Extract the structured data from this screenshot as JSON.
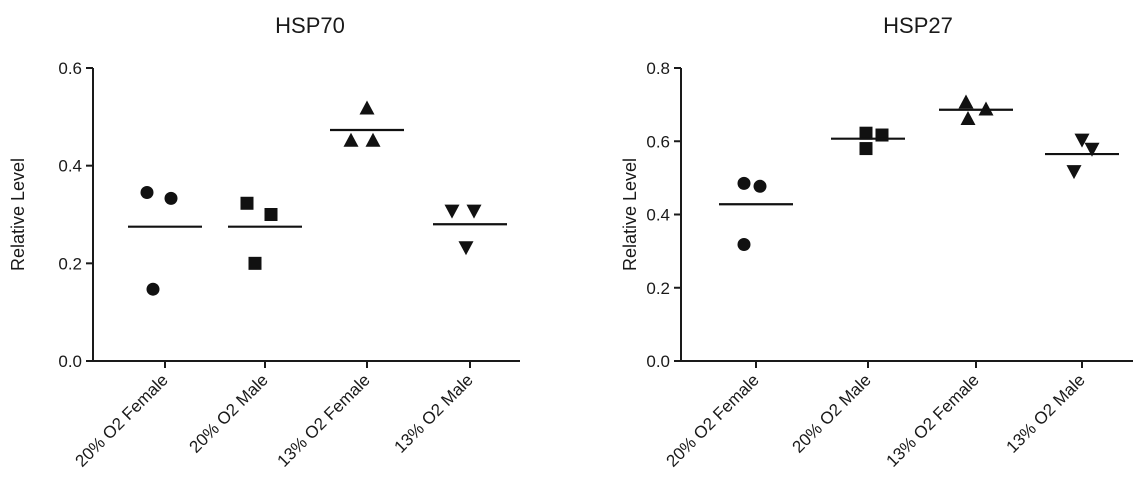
{
  "chart_data": [
    {
      "type": "scatter",
      "title": "HSP70",
      "xlabel": "",
      "ylabel": "Relative Level",
      "ylim": [
        0,
        0.6
      ],
      "yticks": [
        "0.0",
        "0.2",
        "0.4",
        "0.6"
      ],
      "grid": false,
      "categories": [
        "20% O2 Female",
        "20% O2 Male",
        "13% O2 Female",
        "13% O2 Male"
      ],
      "markers": [
        "circle",
        "square",
        "triangle-up",
        "triangle-down"
      ],
      "series": [
        {
          "category": "20% O2 Female",
          "points": [
            0.345,
            0.333,
            0.147
          ],
          "mean": 0.275
        },
        {
          "category": "20% O2 Male",
          "points": [
            0.323,
            0.3,
            0.2
          ],
          "mean": 0.275
        },
        {
          "category": "13% O2 Female",
          "points": [
            0.518,
            0.452,
            0.452
          ],
          "mean": 0.473
        },
        {
          "category": "13% O2 Male",
          "points": [
            0.307,
            0.307,
            0.232
          ],
          "mean": 0.28
        }
      ]
    },
    {
      "type": "scatter",
      "title": "HSP27",
      "xlabel": "",
      "ylabel": "Relative Level",
      "ylim": [
        0,
        0.8
      ],
      "yticks": [
        "0.0",
        "0.2",
        "0.4",
        "0.6",
        "0.8"
      ],
      "grid": false,
      "categories": [
        "20% O2 Female",
        "20% O2 Male",
        "13% O2 Female",
        "13% O2 Male"
      ],
      "markers": [
        "circle",
        "square",
        "triangle-up",
        "triangle-down"
      ],
      "series": [
        {
          "category": "20% O2 Female",
          "points": [
            0.485,
            0.477,
            0.318
          ],
          "mean": 0.428
        },
        {
          "category": "20% O2 Male",
          "points": [
            0.622,
            0.617,
            0.58
          ],
          "mean": 0.607
        },
        {
          "category": "13% O2 Female",
          "points": [
            0.707,
            0.688,
            0.662
          ],
          "mean": 0.686
        },
        {
          "category": "13% O2 Male",
          "points": [
            0.603,
            0.578,
            0.517
          ],
          "mean": 0.565
        }
      ]
    }
  ]
}
